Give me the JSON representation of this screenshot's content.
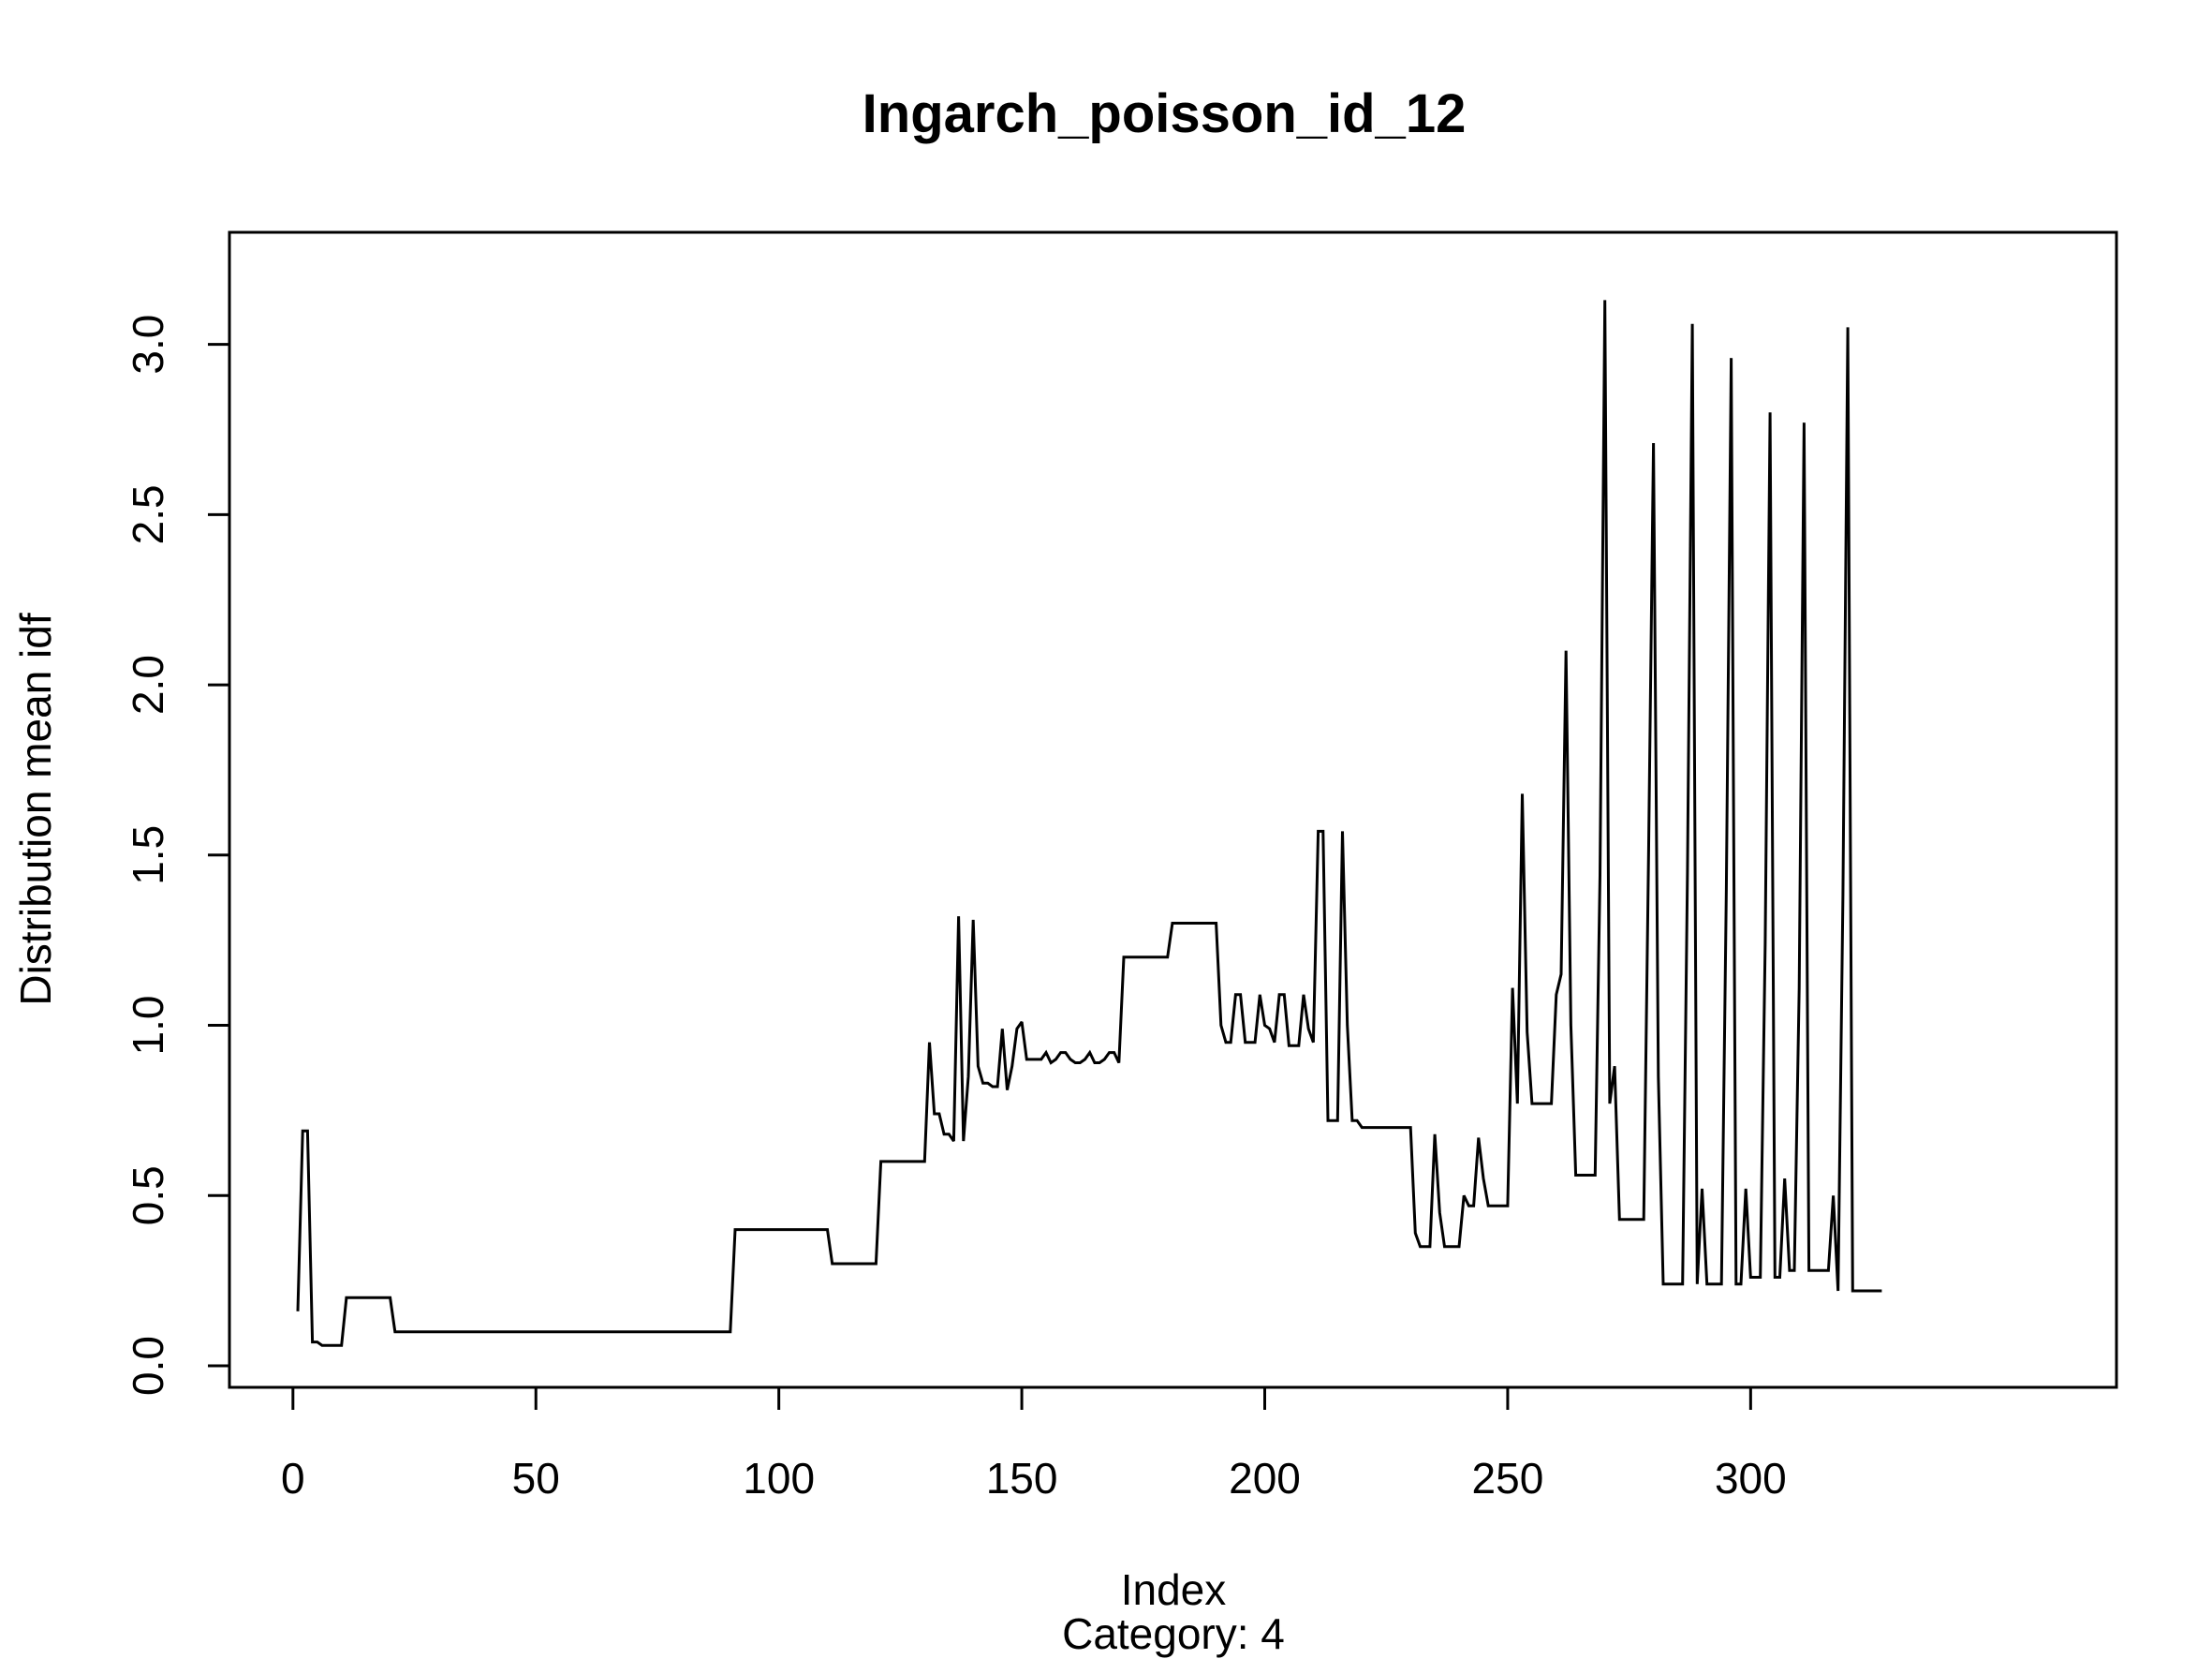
{
  "chart_data": {
    "type": "line",
    "title": "Ingarch_poisson_id_12",
    "xlabel": "Index",
    "subtitle": "Category: 4",
    "ylabel": "Distribution mean idf",
    "xlim": [
      1,
      330
    ],
    "ylim": [
      0,
      3.12
    ],
    "xticks": [
      0,
      50,
      100,
      150,
      200,
      250,
      300
    ],
    "xtick_labels": [
      "0",
      "50",
      "100",
      "150",
      "200",
      "250",
      "300"
    ],
    "yticks": [
      0.0,
      0.5,
      1.0,
      1.5,
      2.0,
      2.5,
      3.0
    ],
    "ytick_labels": [
      "0.0",
      "0.5",
      "1.0",
      "1.5",
      "2.0",
      "2.5",
      "3.0"
    ],
    "grid": false,
    "legend": "none",
    "line_color": "#000000",
    "series": [
      {
        "values": [
          0.16,
          0.69,
          0.69,
          0.07,
          0.07,
          0.06,
          0.06,
          0.06,
          0.06,
          0.06,
          0.2,
          0.2,
          0.2,
          0.2,
          0.2,
          0.2,
          0.2,
          0.2,
          0.2,
          0.2,
          0.1,
          0.1,
          0.1,
          0.1,
          0.1,
          0.1,
          0.1,
          0.1,
          0.1,
          0.1,
          0.1,
          0.1,
          0.1,
          0.1,
          0.1,
          0.1,
          0.1,
          0.1,
          0.1,
          0.1,
          0.1,
          0.1,
          0.1,
          0.1,
          0.1,
          0.1,
          0.1,
          0.1,
          0.1,
          0.1,
          0.1,
          0.1,
          0.1,
          0.1,
          0.1,
          0.1,
          0.1,
          0.1,
          0.1,
          0.1,
          0.1,
          0.1,
          0.1,
          0.1,
          0.1,
          0.1,
          0.1,
          0.1,
          0.1,
          0.1,
          0.1,
          0.1,
          0.1,
          0.1,
          0.1,
          0.1,
          0.1,
          0.1,
          0.1,
          0.1,
          0.1,
          0.1,
          0.1,
          0.1,
          0.1,
          0.1,
          0.1,
          0.1,
          0.1,
          0.1,
          0.4,
          0.4,
          0.4,
          0.4,
          0.4,
          0.4,
          0.4,
          0.4,
          0.4,
          0.4,
          0.4,
          0.4,
          0.4,
          0.4,
          0.4,
          0.4,
          0.4,
          0.4,
          0.4,
          0.4,
          0.3,
          0.3,
          0.3,
          0.3,
          0.3,
          0.3,
          0.3,
          0.3,
          0.3,
          0.3,
          0.6,
          0.6,
          0.6,
          0.6,
          0.6,
          0.6,
          0.6,
          0.6,
          0.6,
          0.6,
          0.95,
          0.74,
          0.74,
          0.68,
          0.68,
          0.66,
          1.32,
          0.66,
          0.85,
          1.31,
          0.88,
          0.83,
          0.83,
          0.82,
          0.82,
          0.99,
          0.81,
          0.88,
          0.99,
          1.01,
          0.9,
          0.9,
          0.9,
          0.9,
          0.92,
          0.89,
          0.9,
          0.92,
          0.92,
          0.9,
          0.89,
          0.89,
          0.9,
          0.92,
          0.89,
          0.89,
          0.9,
          0.92,
          0.92,
          0.89,
          1.2,
          1.2,
          1.2,
          1.2,
          1.2,
          1.2,
          1.2,
          1.2,
          1.2,
          1.2,
          1.3,
          1.3,
          1.3,
          1.3,
          1.3,
          1.3,
          1.3,
          1.3,
          1.3,
          1.3,
          1.0,
          0.95,
          0.95,
          1.09,
          1.09,
          0.95,
          0.95,
          0.95,
          1.09,
          1.0,
          0.99,
          0.95,
          1.09,
          1.09,
          0.94,
          0.94,
          0.94,
          1.09,
          0.99,
          0.95,
          1.57,
          1.57,
          0.72,
          0.72,
          0.72,
          1.57,
          1.0,
          0.72,
          0.72,
          0.7,
          0.7,
          0.7,
          0.7,
          0.7,
          0.7,
          0.7,
          0.7,
          0.7,
          0.7,
          0.7,
          0.39,
          0.35,
          0.35,
          0.35,
          0.68,
          0.45,
          0.35,
          0.35,
          0.35,
          0.35,
          0.5,
          0.47,
          0.47,
          0.67,
          0.55,
          0.47,
          0.47,
          0.47,
          0.47,
          0.47,
          1.11,
          0.77,
          1.68,
          0.98,
          0.77,
          0.77,
          0.77,
          0.77,
          0.77,
          1.09,
          1.15,
          2.1,
          1.0,
          0.56,
          0.56,
          0.56,
          0.56,
          0.56,
          1.44,
          3.13,
          0.77,
          0.88,
          0.43,
          0.43,
          0.43,
          0.43,
          0.43,
          0.43,
          1.51,
          2.71,
          0.85,
          0.24,
          0.24,
          0.24,
          0.24,
          0.24,
          1.45,
          3.06,
          0.24,
          0.52,
          0.24,
          0.24,
          0.24,
          0.24,
          1.4,
          2.96,
          0.24,
          0.24,
          0.52,
          0.26,
          0.26,
          0.26,
          1.24,
          2.8,
          0.26,
          0.26,
          0.55,
          0.28,
          0.28,
          1.11,
          2.77,
          0.28,
          0.28,
          0.28,
          0.28,
          0.28,
          0.5,
          0.22,
          1.38,
          3.05,
          0.22,
          0.22,
          0.22,
          0.22,
          0.22,
          0.22,
          0.22
        ]
      }
    ]
  }
}
